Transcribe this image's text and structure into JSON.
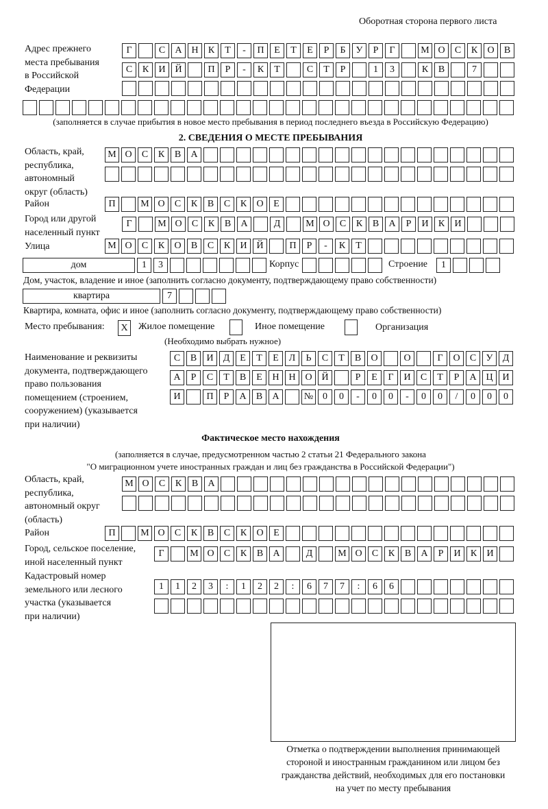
{
  "header": "Оборотная сторона первого листа",
  "prev_address": {
    "label": "Адрес прежнего\nместа пребывания\nв Российской\nФедерации",
    "rows": [
      [
        "Г",
        "",
        "С",
        "А",
        "Н",
        "К",
        "Т",
        "-",
        "П",
        "Е",
        "Т",
        "Е",
        "Р",
        "Б",
        "У",
        "Р",
        "Г",
        "",
        "М",
        "О",
        "С",
        "К",
        "О",
        "В"
      ],
      [
        "С",
        "К",
        "И",
        "Й",
        "",
        "П",
        "Р",
        "-",
        "К",
        "Т",
        "",
        "С",
        "Т",
        "Р",
        "",
        "1",
        "3",
        "",
        "К",
        "В",
        "",
        "7",
        "",
        ""
      ],
      [
        "",
        "",
        "",
        "",
        "",
        "",
        "",
        "",
        "",
        "",
        "",
        "",
        "",
        "",
        "",
        "",
        "",
        "",
        "",
        "",
        "",
        "",
        "",
        ""
      ],
      [
        "",
        "",
        "",
        "",
        "",
        "",
        "",
        "",
        "",
        "",
        "",
        "",
        "",
        "",
        "",
        "",
        "",
        "",
        "",
        "",
        "",
        "",
        "",
        "",
        "",
        "",
        "",
        "",
        "",
        ""
      ]
    ],
    "note": "(заполняется в случае прибытия в новое место пребывания в период последнего въезда в Российскую Федерацию)"
  },
  "section2": {
    "title": "2. СВЕДЕНИЯ О МЕСТЕ ПРЕБЫВАНИЯ",
    "region_label": "Область, край,\nреспублика,\nавтономный\nокруг (область)",
    "region_rows": [
      [
        "М",
        "О",
        "С",
        "К",
        "В",
        "А",
        "",
        "",
        "",
        "",
        "",
        "",
        "",
        "",
        "",
        "",
        "",
        "",
        "",
        "",
        "",
        "",
        "",
        "",
        ""
      ],
      [
        "",
        "",
        "",
        "",
        "",
        "",
        "",
        "",
        "",
        "",
        "",
        "",
        "",
        "",
        "",
        "",
        "",
        "",
        "",
        "",
        "",
        "",
        "",
        "",
        ""
      ]
    ],
    "district_label": "Район",
    "district": [
      "П",
      "",
      "М",
      "О",
      "С",
      "К",
      "В",
      "С",
      "К",
      "О",
      "Е",
      "",
      "",
      "",
      "",
      "",
      "",
      "",
      "",
      "",
      "",
      "",
      "",
      "",
      ""
    ],
    "city_label": "Город или другой\nнаселенный пункт",
    "city": [
      "Г",
      "",
      "М",
      "О",
      "С",
      "К",
      "В",
      "А",
      "",
      "Д",
      "",
      "М",
      "О",
      "С",
      "К",
      "В",
      "А",
      "Р",
      "И",
      "К",
      "И",
      "",
      "",
      ""
    ],
    "street_label": "Улица",
    "street": [
      "М",
      "О",
      "С",
      "К",
      "О",
      "В",
      "С",
      "К",
      "И",
      "Й",
      "",
      "П",
      "Р",
      "-",
      "К",
      "Т",
      "",
      "",
      "",
      "",
      "",
      "",
      "",
      "",
      ""
    ],
    "house_type": "дом",
    "house": [
      "1",
      "3",
      "",
      "",
      "",
      "",
      "",
      ""
    ],
    "korpus_label": "Корпус",
    "korpus": [
      "",
      "",
      "",
      "",
      ""
    ],
    "building_label": "Строение",
    "building": [
      "1",
      "",
      "",
      ""
    ],
    "house_note": "Дом, участок, владение и иное (заполнить согласно документу, подтверждающему право собственности)",
    "apt_type": "квартира",
    "apartment": [
      "7",
      "",
      "",
      ""
    ],
    "apt_note": "Квартира, комната, офис и иное (заполнить согласно документу, подтверждающему право собственности)",
    "stay_label": "Место пребывания:",
    "stay_options": [
      {
        "label": "Жилое помещение",
        "mark": "X"
      },
      {
        "label": "Иное помещение",
        "mark": ""
      },
      {
        "label": "Организация",
        "mark": ""
      }
    ],
    "stay_note": "(Необходимо выбрать нужное)",
    "doc_label": "Наименование и реквизиты\nдокумента, подтверждающего\nправо пользования\nпомещением (строением,\nсооружением) (указывается\nпри наличии)",
    "doc_rows": [
      [
        "С",
        "В",
        "И",
        "Д",
        "Е",
        "Т",
        "Е",
        "Л",
        "Ь",
        "С",
        "Т",
        "В",
        "О",
        "",
        "О",
        "",
        "Г",
        "О",
        "С",
        "У",
        "Д"
      ],
      [
        "А",
        "Р",
        "С",
        "Т",
        "В",
        "Е",
        "Н",
        "Н",
        "О",
        "Й",
        "",
        "Р",
        "Е",
        "Г",
        "И",
        "С",
        "Т",
        "Р",
        "А",
        "Ц",
        "И"
      ],
      [
        "И",
        "",
        "П",
        "Р",
        "А",
        "В",
        "А",
        "",
        "№",
        "0",
        "0",
        "-",
        "0",
        "0",
        "-",
        "0",
        "0",
        "/",
        "0",
        "0",
        "0"
      ]
    ]
  },
  "actual": {
    "title": "Фактическое место нахождения",
    "note1": "(заполняется в случае, предусмотренном частью 2 статьи 21 Федерального закона",
    "note2": "\"О миграционном учете иностранных граждан и лиц без гражданства в Российской Федерации\")",
    "region_label": "Область, край,\nреспублика,\nавтономный округ\n(область)",
    "region_rows": [
      [
        "М",
        "О",
        "С",
        "К",
        "В",
        "А",
        "",
        "",
        "",
        "",
        "",
        "",
        "",
        "",
        "",
        "",
        "",
        "",
        "",
        "",
        "",
        "",
        "",
        ""
      ],
      [
        "",
        "",
        "",
        "",
        "",
        "",
        "",
        "",
        "",
        "",
        "",
        "",
        "",
        "",
        "",
        "",
        "",
        "",
        "",
        "",
        "",
        "",
        "",
        ""
      ]
    ],
    "district_label": "Район",
    "district": [
      "П",
      "",
      "М",
      "О",
      "С",
      "К",
      "В",
      "С",
      "К",
      "О",
      "Е",
      "",
      "",
      "",
      "",
      "",
      "",
      "",
      "",
      "",
      "",
      "",
      "",
      "",
      ""
    ],
    "city_label": "Город, сельское поселение,\nиной населенный пункт",
    "city": [
      "Г",
      "",
      "М",
      "О",
      "С",
      "К",
      "В",
      "А",
      "",
      "Д",
      "",
      "М",
      "О",
      "С",
      "К",
      "В",
      "А",
      "Р",
      "И",
      "К",
      "И",
      ""
    ],
    "cadastral_label": "Кадастровый номер\nземельного или лесного\nучастка (указывается\nпри наличии)",
    "cadastral_rows": [
      [
        "1",
        "1",
        "2",
        "3",
        ":",
        "1",
        "2",
        "2",
        ":",
        "6",
        "7",
        "7",
        ":",
        "6",
        "6",
        "",
        "",
        "",
        "",
        "",
        "",
        ""
      ],
      [
        "",
        "",
        "",
        "",
        "",
        "",
        "",
        "",
        "",
        "",
        "",
        "",
        "",
        "",
        "",
        "",
        "",
        "",
        "",
        "",
        "",
        ""
      ]
    ]
  },
  "stamp_caption": "Отметка о подтверждении выполнения принимающей\nстороной и иностранным гражданином или лицом без\nгражданства действий, необходимых для его постановки\nна учет по месту пребывания"
}
